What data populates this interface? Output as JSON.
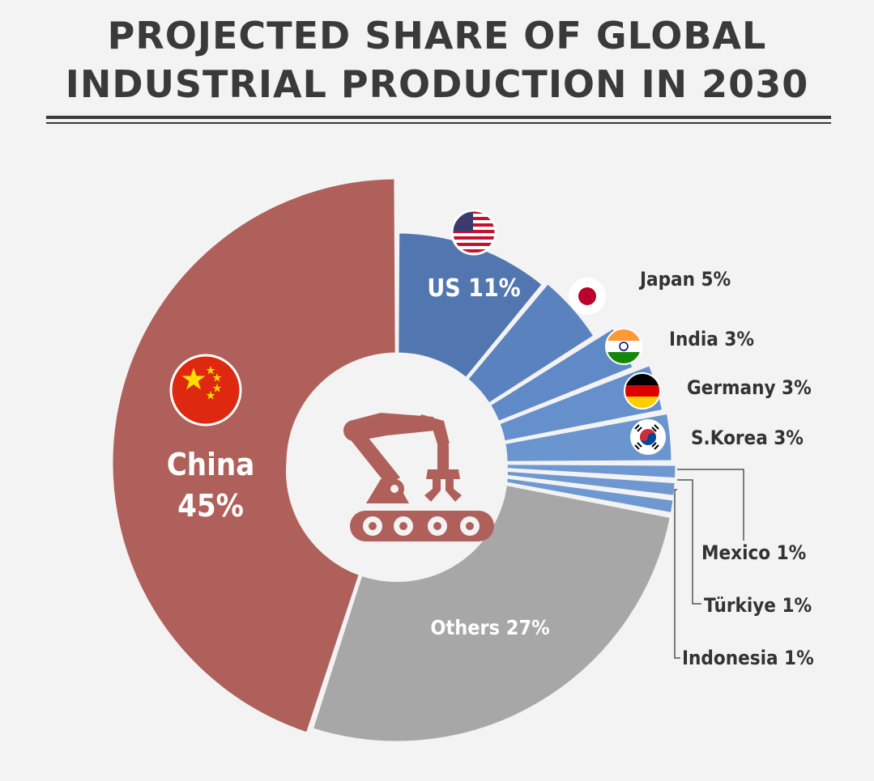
{
  "chart_data": {
    "type": "pie",
    "title": "PROJECTED SHARE OF GLOBAL INDUSTRIAL PRODUCTION IN 2030",
    "title_lines": [
      "PROJECTED SHARE OF GLOBAL",
      "INDUSTRIAL PRODUCTION IN 2030"
    ],
    "center_icon": "robot-arm-conveyor-icon",
    "slices": [
      {
        "label": "China",
        "value": 45,
        "display": "45%",
        "color": "#b0605a",
        "flag_icon": "china-flag-icon"
      },
      {
        "label": "US",
        "value": 11,
        "display": "US 11%",
        "color": "#5277b0",
        "flag_icon": "us-flag-icon"
      },
      {
        "label": "Japan",
        "value": 5,
        "display": "Japan 5%",
        "color": "#5a82bf",
        "flag_icon": "japan-flag-icon"
      },
      {
        "label": "India",
        "value": 3,
        "display": "India 3%",
        "color": "#6089c7",
        "flag_icon": "india-flag-icon"
      },
      {
        "label": "Germany",
        "value": 3,
        "display": "Germany 3%",
        "color": "#6690cc",
        "flag_icon": "germany-flag-icon"
      },
      {
        "label": "S.Korea",
        "value": 3,
        "display": "S.Korea 3%",
        "color": "#6b95cf",
        "flag_icon": "south-korea-flag-icon"
      },
      {
        "label": "Mexico",
        "value": 1,
        "display": "Mexico 1%",
        "color": "#6f98d1",
        "flag_icon": ""
      },
      {
        "label": "Türkiye",
        "value": 1,
        "display": "Türkiye 1%",
        "color": "#6f98d1",
        "flag_icon": ""
      },
      {
        "label": "Indonesia",
        "value": 1,
        "display": "Indonesia 1%",
        "color": "#6f98d1",
        "flag_icon": ""
      },
      {
        "label": "Others",
        "value": 27,
        "display": "Others 27%",
        "color": "#a7a7a7",
        "flag_icon": ""
      }
    ]
  }
}
